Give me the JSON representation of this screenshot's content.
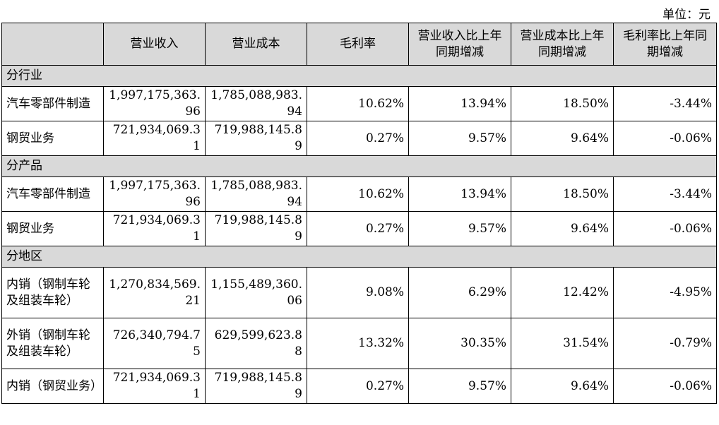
{
  "unit_label": "单位：元",
  "headers": [
    "",
    "营业收入",
    "营业成本",
    "毛利率",
    "营业收入比上年同期增减",
    "营业成本比上年同期增减",
    "毛利率比上年同期增减"
  ],
  "sections": [
    {
      "title": "分行业",
      "rows": [
        {
          "name": "汽车零部件制造",
          "revenue": "1,997,175,363.96",
          "cost": "1,785,088,983.94",
          "margin": "10.62%",
          "rev_chg": "13.94%",
          "cost_chg": "18.50%",
          "margin_chg": "-3.44%"
        },
        {
          "name": "钢贸业务",
          "revenue": "721,934,069.31",
          "cost": "719,988,145.89",
          "margin": "0.27%",
          "rev_chg": "9.57%",
          "cost_chg": "9.64%",
          "margin_chg": "-0.06%"
        }
      ]
    },
    {
      "title": "分产品",
      "rows": [
        {
          "name": "汽车零部件制造",
          "revenue": "1,997,175,363.96",
          "cost": "1,785,088,983.94",
          "margin": "10.62%",
          "rev_chg": "13.94%",
          "cost_chg": "18.50%",
          "margin_chg": "-3.44%"
        },
        {
          "name": "钢贸业务",
          "revenue": "721,934,069.31",
          "cost": "719,988,145.89",
          "margin": "0.27%",
          "rev_chg": "9.57%",
          "cost_chg": "9.64%",
          "margin_chg": "-0.06%"
        }
      ]
    },
    {
      "title": "分地区",
      "rows": [
        {
          "name": "内销（钢制车轮及组装车轮）",
          "revenue": "1,270,834,569.21",
          "cost": "1,155,489,360.06",
          "margin": "9.08%",
          "rev_chg": "6.29%",
          "cost_chg": "12.42%",
          "margin_chg": "-4.95%"
        },
        {
          "name": "外销（钢制车轮及组装车轮）",
          "revenue": "726,340,794.75",
          "cost": "629,599,623.88",
          "margin": "13.32%",
          "rev_chg": "30.35%",
          "cost_chg": "31.54%",
          "margin_chg": "-0.79%"
        },
        {
          "name": "内销（钢贸业务）",
          "revenue": "721,934,069.31",
          "cost": "719,988,145.89",
          "margin": "0.27%",
          "rev_chg": "9.57%",
          "cost_chg": "9.64%",
          "margin_chg": "-0.06%"
        }
      ]
    }
  ]
}
